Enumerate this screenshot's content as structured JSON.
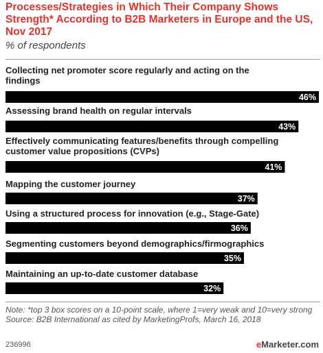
{
  "header": {
    "title": "Processes/Strategies in Which Their Company Shows Strength* According to B2B Marketers in Europe and the US, Nov 2017",
    "subtitle": "% of respondents"
  },
  "chart_data": {
    "type": "bar",
    "orientation": "horizontal",
    "title": "Processes/Strategies in Which Their Company Shows Strength* According to B2B Marketers in Europe and the US, Nov 2017",
    "subtitle": "% of respondents",
    "categories": [
      "Collecting net promoter score regularly and acting on the findings",
      "Assessing brand health on regular intervals",
      "Effectively communicating features/benefits through compelling customer value propositions (CVPs)",
      "Mapping the customer journey",
      "Using a structured process for innovation (e.g., Stage-Gate)",
      "Segmenting customers beyond demographics/firmographics",
      "Maintaining an up-to-date customer database"
    ],
    "values": [
      46,
      43,
      41,
      37,
      36,
      35,
      32
    ],
    "data_labels": [
      "46%",
      "43%",
      "41%",
      "37%",
      "36%",
      "35%",
      "32%"
    ],
    "unit": "%",
    "xlim": [
      0,
      46
    ],
    "bar_color": "#000000",
    "label_color": "#ffffff",
    "grid": false,
    "legend": "none"
  },
  "footer": {
    "note": "Note: *top 3 box scores on a 10-point scale, where 1=very weak and 10=very strong",
    "source": "Source: B2B International as cited by MarketingProfs, March 16, 2018",
    "chart_id": "236996",
    "brand_prefix": "e",
    "brand_name": "Marketer",
    "brand_suffix": ".com"
  },
  "colors": {
    "title": "#e4322b",
    "divider": "#9b9b9b",
    "bar": "#000000"
  }
}
